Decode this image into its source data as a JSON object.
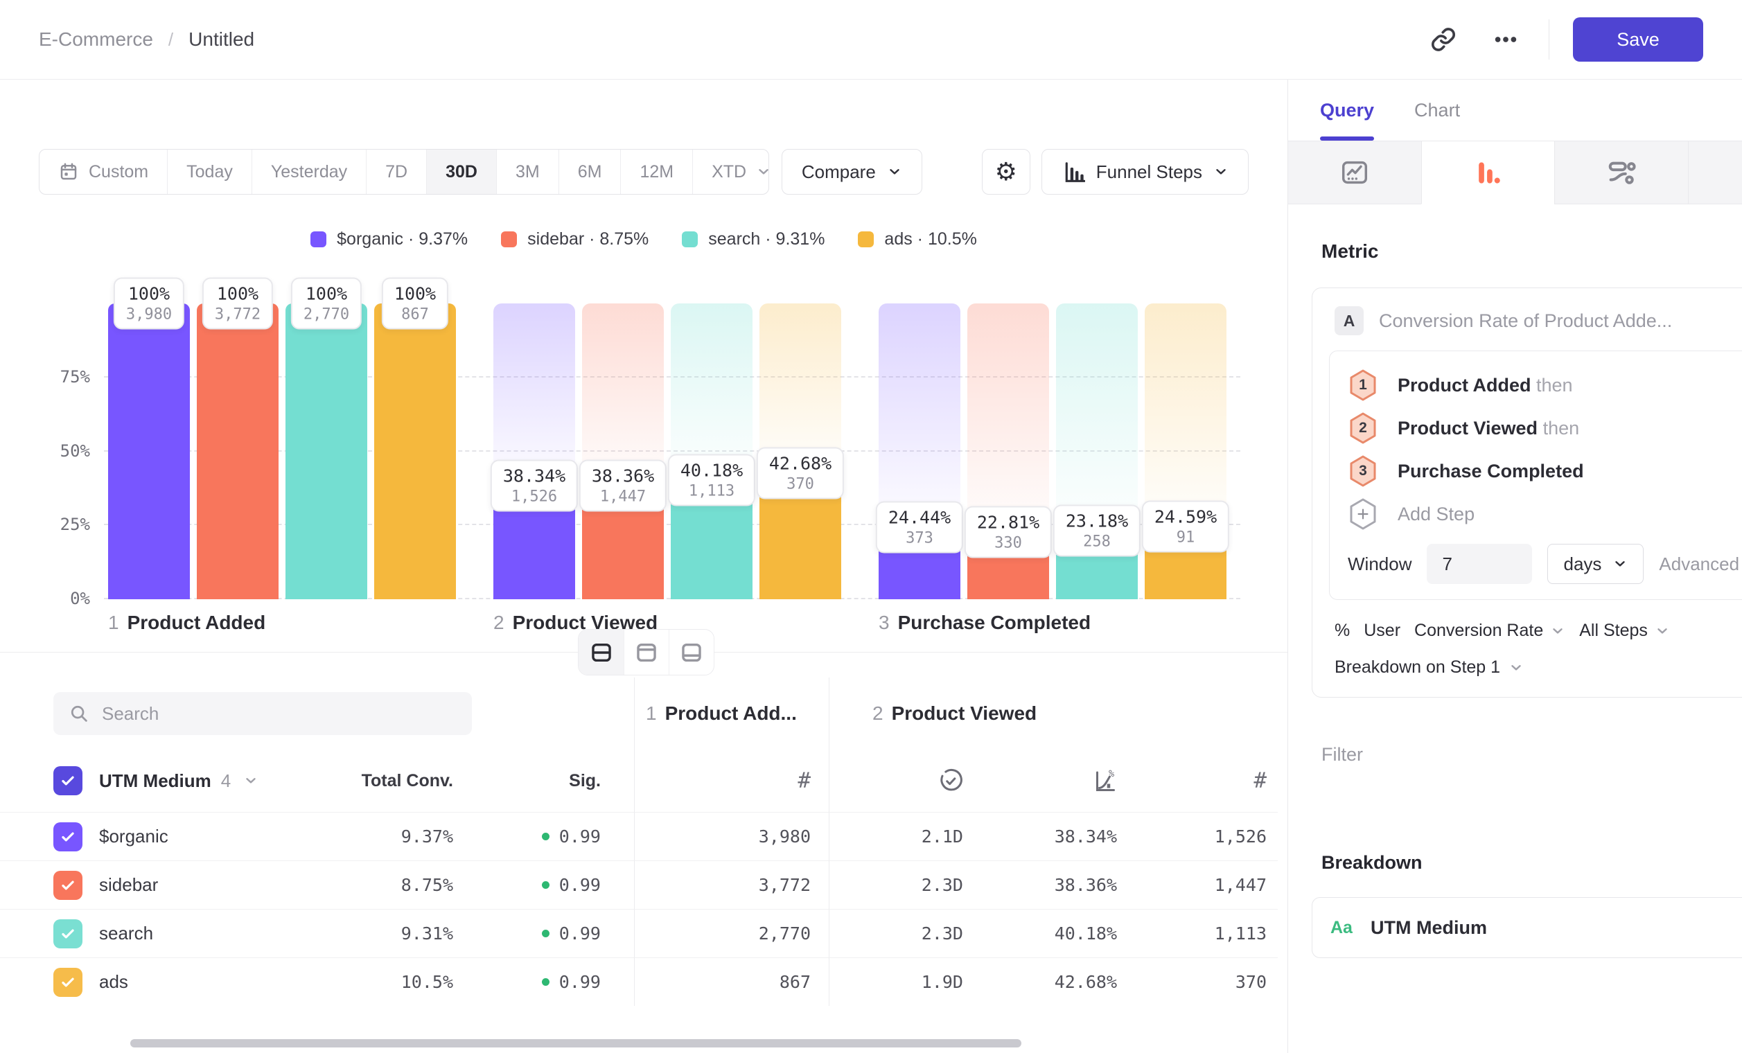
{
  "header": {
    "breadcrumb": {
      "project": "E-Commerce",
      "separator": "/",
      "report": "Untitled"
    },
    "save_label": "Save"
  },
  "toolbar": {
    "date_ranges": [
      "Custom",
      "Today",
      "Yesterday",
      "7D",
      "30D",
      "3M",
      "6M",
      "12M",
      "XTD"
    ],
    "selected_range": "30D",
    "compare_label": "Compare",
    "view_label": "Funnel Steps"
  },
  "legend": [
    {
      "label": "$organic",
      "value": "9.37%",
      "color": "#7856ff"
    },
    {
      "label": "sidebar",
      "value": "8.75%",
      "color": "#f8765c"
    },
    {
      "label": "search",
      "value": "9.31%",
      "color": "#74ded1"
    },
    {
      "label": "ads",
      "value": "10.5%",
      "color": "#f5b83d"
    }
  ],
  "chart_data": {
    "type": "bar",
    "title": "",
    "xlabel": "",
    "ylabel": "",
    "ylim": [
      0,
      100
    ],
    "yticks": [
      {
        "pct": 75,
        "label": "75%"
      },
      {
        "pct": 50,
        "label": "50%"
      },
      {
        "pct": 25,
        "label": "25%"
      },
      {
        "pct": 0,
        "label": "0%"
      }
    ],
    "grid": "dashed-horizontal",
    "legend_position": "top-center",
    "steps": [
      {
        "index": "1",
        "label": "Product Added"
      },
      {
        "index": "2",
        "label": "Product Viewed"
      },
      {
        "index": "3",
        "label": "Purchase Completed"
      }
    ],
    "series": [
      {
        "name": "$organic",
        "color": "#7856ff",
        "values": [
          {
            "pct": 100,
            "pct_label": "100%",
            "count_label": "3,980"
          },
          {
            "pct": 38.34,
            "pct_label": "38.34%",
            "count_label": "1,526"
          },
          {
            "pct": 24.44,
            "pct_label": "24.44%",
            "count_label": "373"
          }
        ]
      },
      {
        "name": "sidebar",
        "color": "#f8765c",
        "values": [
          {
            "pct": 100,
            "pct_label": "100%",
            "count_label": "3,772"
          },
          {
            "pct": 38.36,
            "pct_label": "38.36%",
            "count_label": "1,447"
          },
          {
            "pct": 22.81,
            "pct_label": "22.81%",
            "count_label": "330"
          }
        ]
      },
      {
        "name": "search",
        "color": "#74ded1",
        "values": [
          {
            "pct": 100,
            "pct_label": "100%",
            "count_label": "2,770"
          },
          {
            "pct": 40.18,
            "pct_label": "40.18%",
            "count_label": "1,113"
          },
          {
            "pct": 23.18,
            "pct_label": "23.18%",
            "count_label": "258"
          }
        ]
      },
      {
        "name": "ads",
        "color": "#f5b83d",
        "values": [
          {
            "pct": 100,
            "pct_label": "100%",
            "count_label": "867"
          },
          {
            "pct": 42.68,
            "pct_label": "42.68%",
            "count_label": "370"
          },
          {
            "pct": 24.59,
            "pct_label": "24.59%",
            "count_label": "91"
          }
        ]
      }
    ]
  },
  "table": {
    "search_placeholder": "Search",
    "group": {
      "label": "UTM Medium",
      "count": "4"
    },
    "col_total": "Total Conv.",
    "col_sig": "Sig.",
    "step_cols": [
      {
        "index": "1",
        "label": "Product Add..."
      },
      {
        "index": "2",
        "label": "Product Viewed"
      }
    ],
    "rows": [
      {
        "label": "$organic",
        "color": "#7856ff",
        "total": "9.37%",
        "sig": "0.99",
        "cells": [
          "3,980",
          "2.1D",
          "38.34%",
          "1,526"
        ]
      },
      {
        "label": "sidebar",
        "color": "#f8765c",
        "total": "8.75%",
        "sig": "0.99",
        "cells": [
          "3,772",
          "2.3D",
          "38.36%",
          "1,447"
        ]
      },
      {
        "label": "search",
        "color": "#7adfd2",
        "total": "9.31%",
        "sig": "0.99",
        "cells": [
          "2,770",
          "2.3D",
          "40.18%",
          "1,113"
        ]
      },
      {
        "label": "ads",
        "color": "#f6bc4a",
        "total": "10.5%",
        "sig": "0.99",
        "cells": [
          "867",
          "1.9D",
          "42.68%",
          "370"
        ]
      }
    ]
  },
  "query_panel": {
    "tabs": [
      {
        "label": "Query"
      },
      {
        "label": "Chart"
      }
    ],
    "active_tab": "Query",
    "metric_heading": "Metric",
    "metric": {
      "badge": "A",
      "name": "Conversion Rate of Product Adde..."
    },
    "steps": [
      {
        "num": "1",
        "label": "Product Added",
        "suffix": "then"
      },
      {
        "num": "2",
        "label": "Product Viewed",
        "suffix": "then"
      },
      {
        "num": "3",
        "label": "Purchase Completed",
        "suffix": ""
      }
    ],
    "add_step_label": "Add Step",
    "window": {
      "label": "Window",
      "value": "7",
      "unit": "days",
      "advanced_label": "Advanced"
    },
    "measurement": {
      "symbol": "%",
      "entity": "User",
      "metric": "Conversion Rate",
      "steps_scope": "All Steps"
    },
    "breakdown_on_label": "Breakdown on Step 1",
    "filter_label": "Filter",
    "breakdown_heading": "Breakdown",
    "breakdown_items": [
      {
        "badge": "Aa",
        "label": "UTM Medium"
      }
    ]
  },
  "colors": {
    "accent": "#4f44d2",
    "funnel_tab_icon": "#ff7557",
    "sig_dot": "#2eb872",
    "aa_badge": "#3bbb80"
  }
}
